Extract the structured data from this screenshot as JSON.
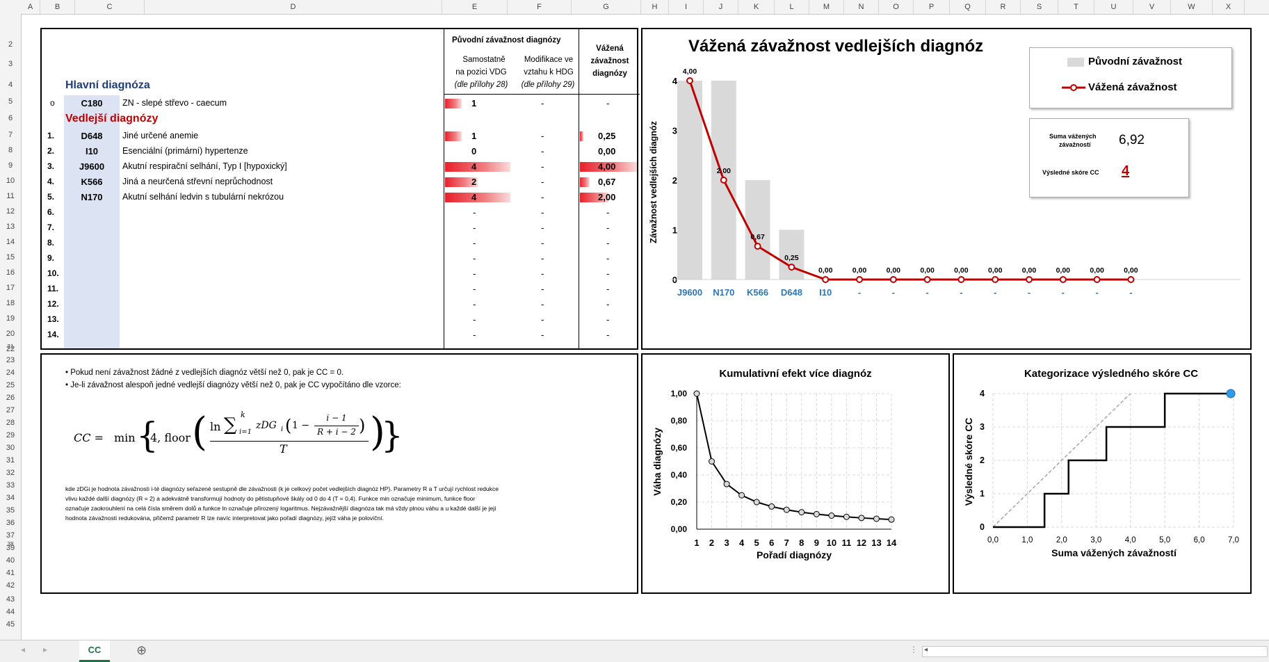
{
  "sheet": {
    "columns": [
      "A",
      "B",
      "C",
      "D",
      "E",
      "F",
      "G",
      "H",
      "I",
      "J",
      "K",
      "L",
      "M",
      "N",
      "O",
      "P",
      "Q",
      "R",
      "S",
      "T",
      "U",
      "V",
      "W",
      "X"
    ],
    "rows": [
      "2",
      "3",
      "4",
      "5",
      "6",
      "7",
      "8",
      "9",
      "10",
      "11",
      "12",
      "13",
      "14",
      "15",
      "16",
      "17",
      "18",
      "19",
      "20",
      "21",
      "22",
      "23",
      "24",
      "25",
      "26",
      "27",
      "28",
      "29",
      "30",
      "31",
      "32",
      "33",
      "34",
      "35",
      "36",
      "37",
      "38",
      "39",
      "40",
      "41",
      "42",
      "43",
      "44",
      "45"
    ],
    "active_tab": "CC",
    "add_sheet": "⊕"
  },
  "table": {
    "hdr_group": "Původní závažnost diagnózy",
    "hdr_e1": "Samostatně",
    "hdr_e2": "na pozici VDG",
    "hdr_e3": "(dle přílohy 28)",
    "hdr_f1": "Modifikace ve",
    "hdr_f2": "vztahu k HDG",
    "hdr_f3": "(dle přílohy 29)",
    "hdr_g1": "Vážená",
    "hdr_g2": "závažnost",
    "hdr_g3": "diagnózy",
    "main_title": "Hlavní diagnóza",
    "main": {
      "bullet": "o",
      "code": "C180",
      "name": "ZN - slepé střevo - caecum",
      "e": "1",
      "f": "-",
      "g": "-",
      "bar": 0.25
    },
    "secondary_title": "Vedlejší diagnózy",
    "rows": [
      {
        "idx": "1.",
        "code": "D648",
        "name": "Jiné určené anemie",
        "e": "1",
        "f": "-",
        "g": "0,25",
        "ebar": 0.25,
        "gbar": 0.0625
      },
      {
        "idx": "2.",
        "code": "I10",
        "name": "Esenciální (primární) hypertenze",
        "e": "0",
        "f": "-",
        "g": "0,00",
        "ebar": 0,
        "gbar": 0
      },
      {
        "idx": "3.",
        "code": "J9600",
        "name": "Akutní respirační selhání, Typ I [hypoxický]",
        "e": "4",
        "f": "-",
        "g": "4,00",
        "ebar": 1,
        "gbar": 1
      },
      {
        "idx": "4.",
        "code": "K566",
        "name": "Jiná a neurčená střevní neprůchodnost",
        "e": "2",
        "f": "-",
        "g": "0,67",
        "ebar": 0.5,
        "gbar": 0.17
      },
      {
        "idx": "5.",
        "code": "N170",
        "name": "Akutní selhání ledvin s tubulární nekrózou",
        "e": "4",
        "f": "-",
        "g": "2,00",
        "ebar": 1,
        "gbar": 0.5
      },
      {
        "idx": "6.",
        "code": "",
        "name": "",
        "e": "-",
        "f": "-",
        "g": "-",
        "ebar": 0,
        "gbar": 0
      },
      {
        "idx": "7.",
        "code": "",
        "name": "",
        "e": "-",
        "f": "-",
        "g": "-",
        "ebar": 0,
        "gbar": 0
      },
      {
        "idx": "8.",
        "code": "",
        "name": "",
        "e": "-",
        "f": "-",
        "g": "-",
        "ebar": 0,
        "gbar": 0
      },
      {
        "idx": "9.",
        "code": "",
        "name": "",
        "e": "-",
        "f": "-",
        "g": "-",
        "ebar": 0,
        "gbar": 0
      },
      {
        "idx": "10.",
        "code": "",
        "name": "",
        "e": "-",
        "f": "-",
        "g": "-",
        "ebar": 0,
        "gbar": 0
      },
      {
        "idx": "11.",
        "code": "",
        "name": "",
        "e": "-",
        "f": "-",
        "g": "-",
        "ebar": 0,
        "gbar": 0
      },
      {
        "idx": "12.",
        "code": "",
        "name": "",
        "e": "-",
        "f": "-",
        "g": "-",
        "ebar": 0,
        "gbar": 0
      },
      {
        "idx": "13.",
        "code": "",
        "name": "",
        "e": "-",
        "f": "-",
        "g": "-",
        "ebar": 0,
        "gbar": 0
      },
      {
        "idx": "14.",
        "code": "",
        "name": "",
        "e": "-",
        "f": "-",
        "g": "-",
        "ebar": 0,
        "gbar": 0
      }
    ]
  },
  "notes": {
    "b1": "• Pokud není závažnost žádné z vedlejších diagnóz větší než 0, pak je CC = 0.",
    "b2": "• Je-li závažnost alespoň jedné vedlejší diagnózy větší než 0, pak je CC vypočítáno dle vzorce:",
    "formula_lhs": "CC =",
    "formula_min": "min",
    "formula_four": "4, floor",
    "formula_ln": "ln",
    "formula_sum": "∑",
    "formula_sum_upper": "k",
    "formula_sum_lower": "i=1",
    "formula_term": "zDG",
    "formula_term_sub": "i",
    "formula_paren_one": "1 −",
    "formula_frac_num": "i − 1",
    "formula_frac_den": "R + i − 2",
    "formula_outer_den": "T",
    "p1": "kde zDGi je hodnota závažnosti i-té diagnózy seřazené sestupně dle závažnosti (k je celkový počet vedlejších diagnóz HP). Parametry R a T určují rychlost redukce",
    "p2": "vlivu každé další diagnózy (R = 2) a adekvátně transformují hodnoty do pětistupňové škály od 0 do 4 (T = 0,4). Funkce min označuje minimum, funkce floor",
    "p3": "označuje zaokrouhlení na celá čísla směrem dolů a funkce ln označuje přirozený logaritmus. Nejzávažnější diagnóza tak má vždy plnou váhu a u každé další je její",
    "p4": "hodnota závažnosti redukována, přičemž parametr R lze navíc interpretovat jako pořadí diagnózy, jejíž váha je poloviční."
  },
  "summary": {
    "sum_label1": "Suma vážených",
    "sum_label2": "závažností",
    "sum_value": "6,92",
    "score_label": "Výsledné skóre CC",
    "score_value": "4"
  },
  "chart_data": [
    {
      "type": "bar",
      "title": "Vážená závažnost vedlejších diagnóz",
      "ylabel": "Závažnost vedlejších diagnóz",
      "xlabel": "",
      "ylim": [
        0,
        4
      ],
      "yticks": [
        "0",
        "1",
        "2",
        "3",
        "4"
      ],
      "categories": [
        "J9600",
        "N170",
        "K566",
        "D648",
        "I10",
        "-",
        "-",
        "-",
        "-",
        "-",
        "-",
        "-",
        "-",
        "-"
      ],
      "series": [
        {
          "name": "Původní závažnost",
          "type": "bar",
          "values": [
            4,
            4,
            2,
            1,
            0,
            0,
            0,
            0,
            0,
            0,
            0,
            0,
            0,
            0
          ]
        },
        {
          "name": "Vážená závažnost",
          "type": "line",
          "values": [
            4.0,
            2.0,
            0.67,
            0.25,
            0,
            0,
            0,
            0,
            0,
            0,
            0,
            0,
            0,
            0
          ],
          "labels": [
            "4,00",
            "2,00",
            "0,67",
            "0,25",
            "0,00",
            "0,00",
            "0,00",
            "0,00",
            "0,00",
            "0,00",
            "0,00",
            "0,00",
            "0,00",
            "0,00"
          ]
        }
      ],
      "legend": "top-right",
      "colors": {
        "bar": "#d9d9d9",
        "line": "#c00000",
        "category": "#2e75b6"
      }
    },
    {
      "type": "line",
      "title": "Kumulativní efekt více diagnóz",
      "xlabel": "Pořadí diagnózy",
      "ylabel": "Váha diagnózy",
      "x": [
        1,
        2,
        3,
        4,
        5,
        6,
        7,
        8,
        9,
        10,
        11,
        12,
        13,
        14
      ],
      "y": [
        1.0,
        0.5,
        0.333,
        0.25,
        0.2,
        0.167,
        0.143,
        0.125,
        0.111,
        0.1,
        0.091,
        0.083,
        0.077,
        0.071
      ],
      "ylim": [
        0,
        1
      ],
      "yticks": [
        "0,00",
        "0,20",
        "0,40",
        "0,60",
        "0,80",
        "1,00"
      ],
      "grid": true
    },
    {
      "type": "line",
      "title": "Kategorizace výsledného skóre CC",
      "xlabel": "Suma vážených závažností",
      "ylabel": "Výsledné skóre CC",
      "xlim": [
        0,
        7
      ],
      "ylim": [
        0,
        4
      ],
      "xticks": [
        "0,0",
        "1,0",
        "2,0",
        "3,0",
        "4,0",
        "5,0",
        "6,0",
        "7,0"
      ],
      "yticks": [
        "0",
        "1",
        "2",
        "3",
        "4"
      ],
      "step_x": [
        0,
        1.5,
        1.5,
        2.2,
        2.2,
        3.3,
        3.3,
        5.0,
        5.0,
        6.92
      ],
      "step_y": [
        0,
        0,
        1,
        1,
        2,
        2,
        3,
        3,
        4,
        4
      ],
      "diagonal": [
        [
          0,
          0
        ],
        [
          4,
          4
        ]
      ],
      "marker": [
        6.92,
        4
      ],
      "grid": true
    }
  ]
}
